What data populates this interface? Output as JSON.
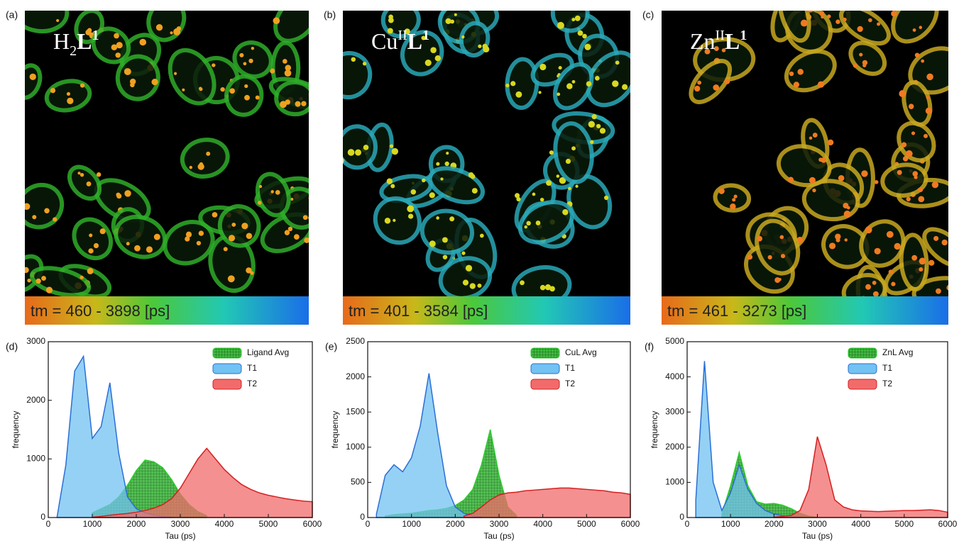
{
  "images": [
    {
      "label": "(a)",
      "title": [
        "H",
        "2",
        "L",
        "1"
      ],
      "caption": "tm = 460 - 3898 [ps]"
    },
    {
      "label": "(b)",
      "title": [
        "Cu",
        "II",
        "L",
        "1"
      ],
      "caption": "tm = 401 - 3584 [ps]"
    },
    {
      "label": "(c)",
      "title": [
        "Zn",
        "II",
        "L",
        "1"
      ],
      "caption": "tm = 461 - 3273 [ps]"
    }
  ],
  "chart_data": [
    {
      "type": "area",
      "label": "(d)",
      "x_label": "Tau (ps)",
      "y_label": "frequency",
      "legend": "upper right",
      "x": [
        200,
        400,
        600,
        800,
        1000,
        1200,
        1400,
        1600,
        1800,
        2000,
        2200,
        2400,
        2600,
        2800,
        3000,
        3200,
        3400,
        3600,
        3800,
        4000,
        4200,
        4400,
        4600,
        4800,
        5000,
        5200,
        5400,
        5600,
        5800,
        6000
      ],
      "xlim": [
        0,
        6000
      ],
      "xticks": [
        0,
        1000,
        2000,
        3000,
        4000,
        5000,
        6000
      ],
      "ylim": [
        0,
        3000
      ],
      "yticks": [
        0,
        1000,
        2000,
        3000
      ],
      "series": [
        {
          "name": "Ligand Avg",
          "color": "#3fb83f",
          "edge_color": "#2ecc2e",
          "hatch": true,
          "values": [
            null,
            null,
            null,
            null,
            80,
            150,
            220,
            350,
            550,
            800,
            980,
            950,
            850,
            650,
            400,
            220,
            100,
            30,
            null,
            null,
            null,
            null,
            null,
            null,
            null,
            null,
            null,
            null,
            null,
            null
          ]
        },
        {
          "name": "T1",
          "color": "#72c2f2",
          "edge_color": "#2a6fd6",
          "hatch": false,
          "values": [
            10,
            900,
            2500,
            2750,
            1350,
            1550,
            2300,
            1100,
            350,
            150,
            80,
            40,
            20,
            5,
            null,
            null,
            null,
            null,
            null,
            null,
            null,
            null,
            null,
            null,
            null,
            null,
            null,
            null,
            null,
            null
          ]
        },
        {
          "name": "T2",
          "color": "#f26b6b",
          "edge_color": "#d62020",
          "hatch": false,
          "values": [
            null,
            null,
            null,
            null,
            5,
            20,
            40,
            55,
            70,
            90,
            120,
            160,
            220,
            320,
            500,
            750,
            1000,
            1180,
            1000,
            820,
            680,
            560,
            480,
            420,
            380,
            350,
            320,
            300,
            280,
            270
          ]
        }
      ]
    },
    {
      "type": "area",
      "label": "(e)",
      "x_label": "Tau (ps)",
      "y_label": "frequency",
      "legend": "upper right",
      "x": [
        200,
        400,
        600,
        800,
        1000,
        1200,
        1400,
        1600,
        1800,
        2000,
        2200,
        2400,
        2600,
        2800,
        3000,
        3200,
        3400,
        3600,
        3800,
        4000,
        4200,
        4400,
        4600,
        4800,
        5000,
        5200,
        5400,
        5600,
        5800,
        6000
      ],
      "xlim": [
        0,
        6000
      ],
      "xticks": [
        0,
        1000,
        2000,
        3000,
        4000,
        5000,
        6000
      ],
      "ylim": [
        0,
        2500
      ],
      "yticks": [
        0,
        500,
        1000,
        1500,
        2000,
        2500
      ],
      "series": [
        {
          "name": "CuL Avg",
          "color": "#3fb83f",
          "edge_color": "#2ecc2e",
          "hatch": true,
          "values": [
            null,
            20,
            40,
            50,
            60,
            80,
            100,
            110,
            130,
            170,
            250,
            400,
            750,
            1250,
            600,
            150,
            30,
            null,
            null,
            null,
            null,
            null,
            null,
            null,
            null,
            null,
            null,
            null,
            null,
            null
          ]
        },
        {
          "name": "T1",
          "color": "#72c2f2",
          "edge_color": "#2a6fd6",
          "hatch": false,
          "values": [
            50,
            600,
            750,
            650,
            850,
            1300,
            2050,
            1200,
            450,
            150,
            60,
            20,
            5,
            null,
            null,
            null,
            null,
            null,
            null,
            null,
            null,
            null,
            null,
            null,
            null,
            null,
            null,
            null,
            null,
            null
          ]
        },
        {
          "name": "T2",
          "color": "#f26b6b",
          "edge_color": "#d62020",
          "hatch": false,
          "values": [
            null,
            null,
            null,
            null,
            null,
            null,
            null,
            null,
            null,
            null,
            20,
            60,
            150,
            250,
            320,
            350,
            360,
            380,
            390,
            400,
            410,
            420,
            420,
            410,
            400,
            390,
            380,
            360,
            350,
            330
          ]
        }
      ]
    },
    {
      "type": "area",
      "label": "(f)",
      "x_label": "Tau (ps)",
      "y_label": "frequency",
      "legend": "upper right",
      "x": [
        200,
        400,
        600,
        800,
        1000,
        1200,
        1400,
        1600,
        1800,
        2000,
        2200,
        2400,
        2600,
        2800,
        3000,
        3200,
        3400,
        3600,
        3800,
        4000,
        4200,
        4400,
        4600,
        4800,
        5000,
        5200,
        5400,
        5600,
        5800,
        6000
      ],
      "xlim": [
        0,
        6000
      ],
      "xticks": [
        0,
        1000,
        2000,
        3000,
        4000,
        5000,
        6000
      ],
      "ylim": [
        0,
        5000
      ],
      "yticks": [
        0,
        1000,
        2000,
        3000,
        4000,
        5000
      ],
      "series": [
        {
          "name": "ZnL Avg",
          "color": "#3fb83f",
          "edge_color": "#2ecc2e",
          "hatch": true,
          "values": [
            null,
            null,
            null,
            100,
            900,
            1850,
            900,
            450,
            380,
            400,
            350,
            250,
            120,
            40,
            10,
            null,
            null,
            null,
            null,
            null,
            null,
            null,
            null,
            null,
            null,
            null,
            null,
            null,
            null,
            null
          ]
        },
        {
          "name": "T1",
          "color": "#72c2f2",
          "edge_color": "#2a6fd6",
          "hatch": false,
          "values": [
            500,
            4450,
            1000,
            200,
            700,
            1500,
            800,
            400,
            200,
            100,
            50,
            20,
            5,
            null,
            null,
            null,
            null,
            null,
            null,
            null,
            null,
            null,
            null,
            null,
            null,
            null,
            null,
            null,
            null,
            null
          ]
        },
        {
          "name": "T2",
          "color": "#f26b6b",
          "edge_color": "#d62020",
          "hatch": false,
          "values": [
            null,
            null,
            null,
            null,
            null,
            null,
            null,
            null,
            null,
            10,
            30,
            60,
            200,
            800,
            2300,
            1500,
            500,
            300,
            220,
            190,
            180,
            170,
            180,
            190,
            200,
            200,
            210,
            220,
            200,
            150
          ]
        }
      ]
    }
  ]
}
